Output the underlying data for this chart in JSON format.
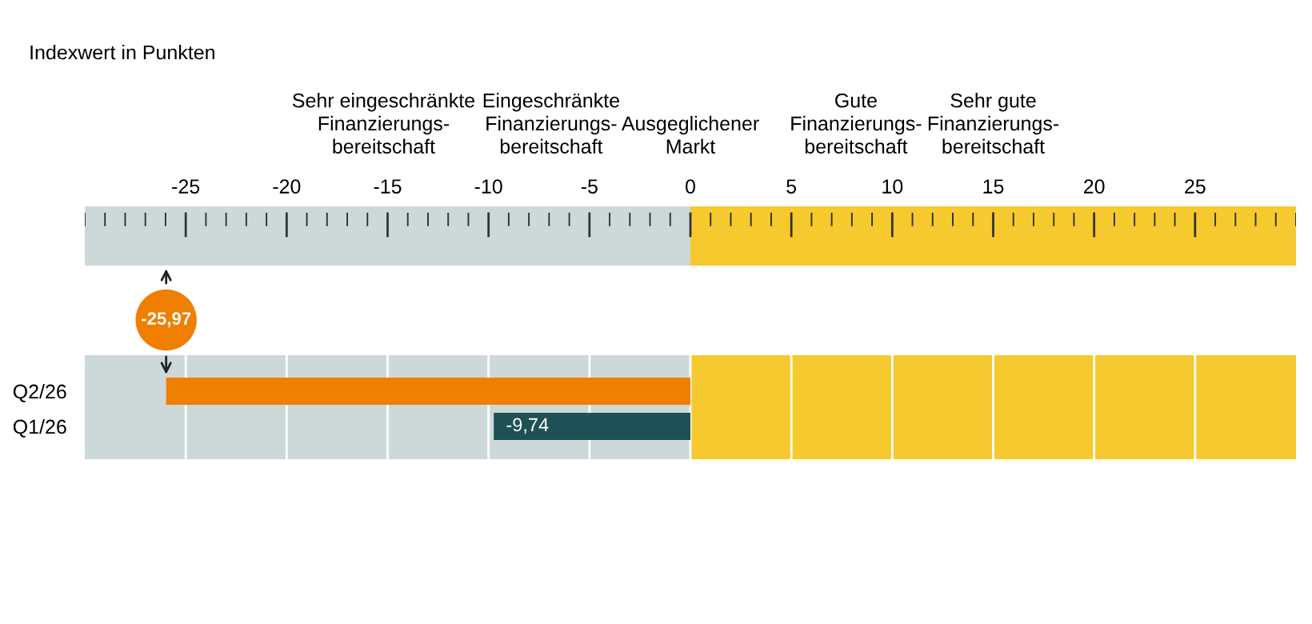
{
  "chart_data": {
    "type": "bar",
    "orientation": "horizontal",
    "subtitle": "Indexwert in Punkten",
    "categories": [
      "Q2/26",
      "Q1/26"
    ],
    "values": [
      -25.97,
      -9.74
    ],
    "colors": [
      "#ee7f00",
      "#1f5055"
    ],
    "value_labels": [
      null,
      "-9,74"
    ],
    "xlim": [
      -30,
      30
    ],
    "x2lim": [
      -30,
      30
    ],
    "x2ticks": [
      -25,
      -20,
      -15,
      -10,
      -5,
      0,
      5,
      10,
      15,
      20,
      25
    ],
    "grid": "x",
    "tick_labels": "y",
    "bands": [
      {
        "axis": "x",
        "from": -30,
        "to": 0,
        "color": "#cdd9d9"
      },
      {
        "axis": "x",
        "from": 0,
        "to": 30,
        "color": "#f6c92f"
      }
    ],
    "annotations": [
      "Sehr eingeschränkte\nFinanzierungs-\nbereitschaft",
      "Eingeschränkte\nFinanzierungs-\nbereitschaft",
      "Ausgeglichener\nMarkt",
      "Gute\nFinanzierungs-\nbereitschaft",
      "Sehr gute\nFinanzierungs-\nbereitschaft",
      "-25,97"
    ]
  }
}
